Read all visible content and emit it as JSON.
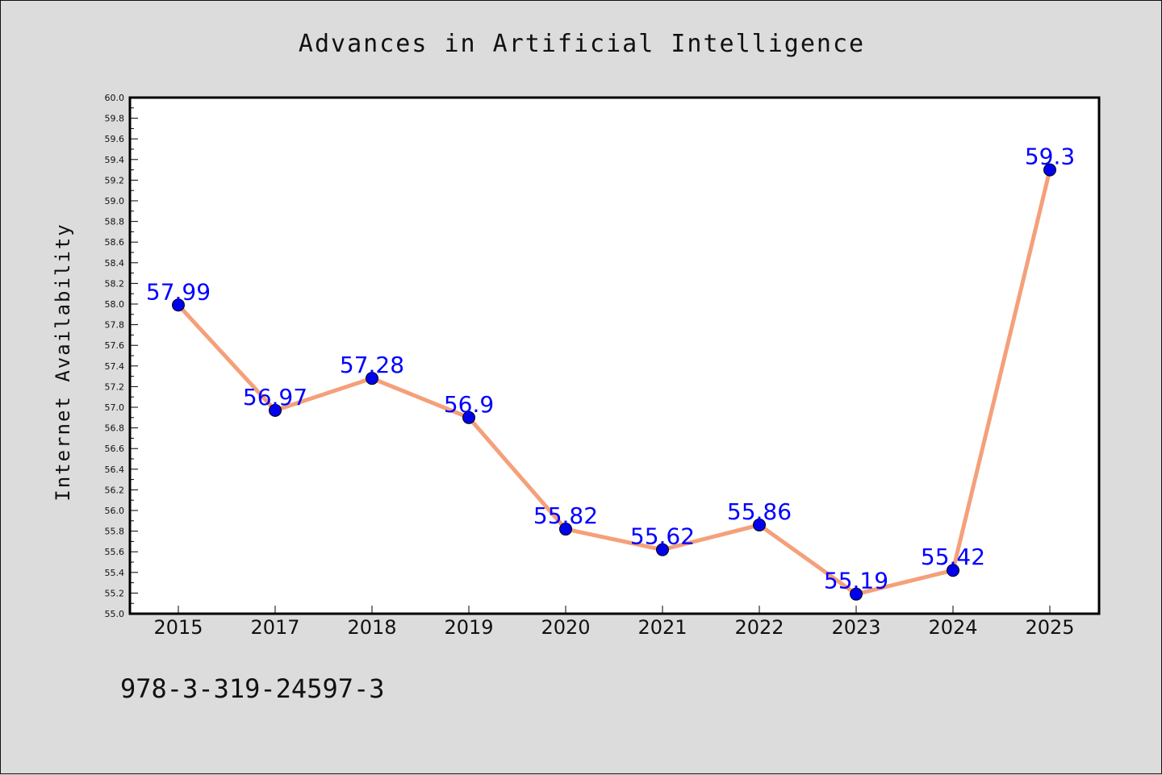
{
  "chart_data": {
    "type": "line",
    "title": "Advances in Artificial Intelligence",
    "xlabel": "",
    "ylabel": "Internet Availability",
    "categories": [
      "2015",
      "2017",
      "2018",
      "2019",
      "2020",
      "2021",
      "2022",
      "2023",
      "2024",
      "2025"
    ],
    "series": [
      {
        "values": [
          57.99,
          56.97,
          57.28,
          56.9,
          55.82,
          55.62,
          55.86,
          55.19,
          55.42,
          59.3
        ],
        "labels": [
          "57.99",
          "56.97",
          "57.28",
          "56.9",
          "55.82",
          "55.62",
          "55.86",
          "55.19",
          "55.42",
          "59.3"
        ]
      }
    ],
    "ylim": [
      55.0,
      60.0
    ],
    "yticks": [
      "55.0",
      "55.2",
      "55.4",
      "55.6",
      "55.8",
      "56.0",
      "56.2",
      "56.4",
      "56.6",
      "56.8",
      "57.0",
      "57.2",
      "57.4",
      "57.6",
      "57.8",
      "58.0",
      "58.2",
      "58.4",
      "58.6",
      "58.8",
      "59.0",
      "59.2",
      "59.4",
      "59.6",
      "59.8",
      "60.0"
    ],
    "grid": false,
    "legend": "none",
    "colors": {
      "line": "#f4a07a",
      "marker": "#0000ee",
      "data_label": "#0000ff",
      "background": "#dcdcdc",
      "plot_background": "#ffffff"
    }
  },
  "footer": {
    "isbn": "978-3-319-24597-3"
  }
}
